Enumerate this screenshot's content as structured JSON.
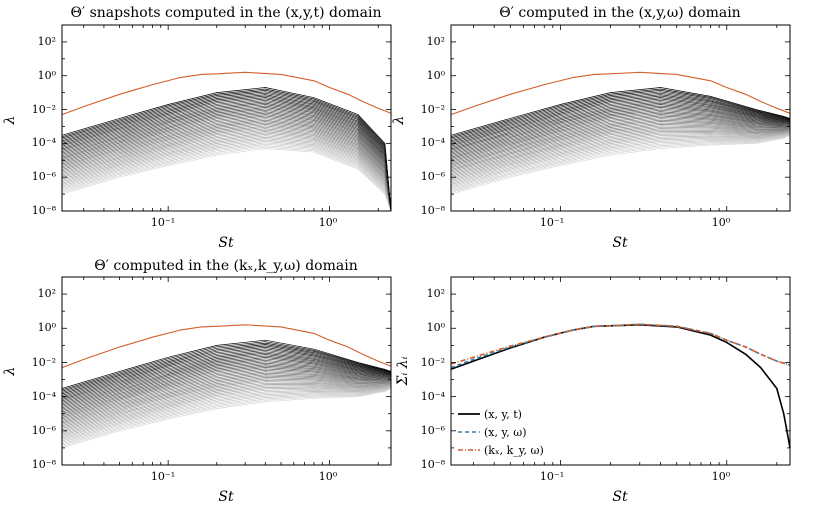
{
  "chart_data": [
    {
      "type": "line",
      "panel": "a",
      "title": "Θ′ snapshots computed in the (x,y,t) domain",
      "xlabel": "St",
      "ylabel": "λ",
      "xscale": "log",
      "yscale": "log",
      "xlim": [
        0.022,
        2.4
      ],
      "ylim": [
        1e-08,
        1000.0
      ],
      "xticks": [
        "10⁻¹",
        "10⁰"
      ],
      "yticks": [
        "10⁻⁸",
        "10⁻⁶",
        "10⁻⁴",
        "10⁻²",
        "10⁰",
        "10²"
      ],
      "series": [
        {
          "role": "leading",
          "color": "#d35f2a",
          "x": [
            0.022,
            0.03,
            0.05,
            0.08,
            0.12,
            0.16,
            0.2,
            0.3,
            0.5,
            0.8,
            1.0,
            1.3,
            1.6,
            2.0,
            2.4
          ],
          "y": [
            0.005,
            0.015,
            0.08,
            0.3,
            0.8,
            1.2,
            1.3,
            1.6,
            1.2,
            0.5,
            0.2,
            0.08,
            0.03,
            0.012,
            0.006
          ]
        },
        {
          "role": "lower",
          "color": "#000000",
          "x": [
            0.022,
            0.05,
            0.1,
            0.2,
            0.4,
            0.8,
            1.5,
            2.2,
            2.4
          ],
          "y": [
            0.0003,
            0.003,
            0.02,
            0.1,
            0.2,
            0.05,
            0.005,
            0.0001,
            1e-08
          ]
        },
        {
          "role": "lower",
          "color": "#d9d9d9",
          "x": [
            0.022,
            0.05,
            0.1,
            0.2,
            0.4,
            0.8,
            1.5,
            2.2,
            2.4
          ],
          "y": [
            1e-07,
            1e-06,
            5e-06,
            2e-05,
            5e-05,
            3e-05,
            3e-06,
            1e-07,
            1e-08
          ]
        }
      ]
    },
    {
      "type": "line",
      "panel": "b",
      "title": "Θ′ computed in the (x,y,ω) domain",
      "xlabel": "St",
      "ylabel": "λ",
      "xscale": "log",
      "yscale": "log",
      "xlim": [
        0.022,
        2.4
      ],
      "ylim": [
        1e-08,
        1000.0
      ],
      "xticks": [
        "10⁻¹",
        "10⁰"
      ],
      "yticks": [
        "10⁻⁸",
        "10⁻⁶",
        "10⁻⁴",
        "10⁻²",
        "10⁰",
        "10²"
      ],
      "series": [
        {
          "role": "leading",
          "color": "#d35f2a",
          "x": [
            0.022,
            0.03,
            0.05,
            0.08,
            0.12,
            0.16,
            0.2,
            0.3,
            0.5,
            0.8,
            1.0,
            1.3,
            1.6,
            2.0,
            2.4
          ],
          "y": [
            0.005,
            0.015,
            0.08,
            0.3,
            0.8,
            1.2,
            1.3,
            1.6,
            1.2,
            0.5,
            0.2,
            0.08,
            0.03,
            0.012,
            0.006
          ]
        },
        {
          "role": "lower",
          "color": "#000000",
          "x": [
            0.022,
            0.05,
            0.1,
            0.2,
            0.4,
            0.8,
            1.5,
            2.2,
            2.4
          ],
          "y": [
            0.0003,
            0.003,
            0.02,
            0.1,
            0.2,
            0.06,
            0.01,
            0.004,
            0.003
          ]
        },
        {
          "role": "lower",
          "color": "#d9d9d9",
          "x": [
            0.022,
            0.05,
            0.1,
            0.2,
            0.4,
            0.8,
            1.5,
            2.2,
            2.4
          ],
          "y": [
            1e-07,
            1e-06,
            5e-06,
            2e-05,
            5e-05,
            8e-05,
            0.0001,
            0.0002,
            0.0003
          ]
        }
      ]
    },
    {
      "type": "line",
      "panel": "c",
      "title": "Θ′ computed in the (kₓ,k_y,ω) domain",
      "xlabel": "St",
      "ylabel": "λ",
      "xscale": "log",
      "yscale": "log",
      "xlim": [
        0.022,
        2.4
      ],
      "ylim": [
        1e-08,
        1000.0
      ],
      "xticks": [
        "10⁻¹",
        "10⁰"
      ],
      "yticks": [
        "10⁻⁸",
        "10⁻⁶",
        "10⁻⁴",
        "10⁻²",
        "10⁰",
        "10²"
      ],
      "series": [
        {
          "role": "leading",
          "color": "#d35f2a",
          "x": [
            0.022,
            0.03,
            0.05,
            0.08,
            0.12,
            0.16,
            0.2,
            0.3,
            0.5,
            0.8,
            1.0,
            1.3,
            1.6,
            2.0,
            2.4
          ],
          "y": [
            0.005,
            0.015,
            0.08,
            0.3,
            0.8,
            1.2,
            1.3,
            1.6,
            1.2,
            0.5,
            0.2,
            0.08,
            0.03,
            0.012,
            0.006
          ]
        },
        {
          "role": "lower",
          "color": "#000000",
          "x": [
            0.022,
            0.05,
            0.1,
            0.2,
            0.4,
            0.8,
            1.5,
            2.2,
            2.4
          ],
          "y": [
            0.0003,
            0.003,
            0.02,
            0.1,
            0.2,
            0.06,
            0.01,
            0.004,
            0.003
          ]
        },
        {
          "role": "lower",
          "color": "#d9d9d9",
          "x": [
            0.022,
            0.05,
            0.1,
            0.2,
            0.4,
            0.8,
            1.5,
            2.2,
            2.4
          ],
          "y": [
            1e-07,
            1e-06,
            5e-06,
            2e-05,
            5e-05,
            8e-05,
            0.0001,
            0.0002,
            0.0003
          ]
        }
      ]
    },
    {
      "type": "line",
      "panel": "d",
      "title": "",
      "xlabel": "St",
      "ylabel": "Σᵢ λᵢ",
      "xscale": "log",
      "yscale": "log",
      "xlim": [
        0.022,
        2.4
      ],
      "ylim": [
        1e-08,
        1000.0
      ],
      "xticks": [
        "10⁻¹",
        "10⁰"
      ],
      "yticks": [
        "10⁻⁸",
        "10⁻⁶",
        "10⁻⁴",
        "10⁻²",
        "10⁰",
        "10²"
      ],
      "legend_position": "bottom-left",
      "series": [
        {
          "name": "(x, y, t)",
          "color": "#000000",
          "dash": "solid",
          "x": [
            0.022,
            0.03,
            0.05,
            0.08,
            0.12,
            0.16,
            0.2,
            0.3,
            0.5,
            0.8,
            1.0,
            1.3,
            1.6,
            2.0,
            2.2,
            2.3,
            2.4
          ],
          "y": [
            0.004,
            0.012,
            0.07,
            0.3,
            0.8,
            1.3,
            1.4,
            1.6,
            1.2,
            0.4,
            0.15,
            0.03,
            0.005,
            0.0003,
            1e-05,
            1e-06,
            1e-07
          ]
        },
        {
          "name": "(x, y, ω)",
          "color": "#2f7fb3",
          "dash": "dashed",
          "x": [
            0.022,
            0.03,
            0.05,
            0.08,
            0.12,
            0.16,
            0.2,
            0.3,
            0.5,
            0.8,
            1.0,
            1.3,
            1.6,
            2.0,
            2.4
          ],
          "y": [
            0.005,
            0.015,
            0.08,
            0.3,
            0.8,
            1.3,
            1.4,
            1.7,
            1.3,
            0.5,
            0.2,
            0.08,
            0.03,
            0.012,
            0.007
          ]
        },
        {
          "name": "(kₓ, k_y, ω)",
          "color": "#d35f2a",
          "dash": "dashdot",
          "x": [
            0.022,
            0.03,
            0.05,
            0.08,
            0.12,
            0.16,
            0.2,
            0.3,
            0.5,
            0.8,
            1.0,
            1.3,
            1.6,
            2.0,
            2.4
          ],
          "y": [
            0.008,
            0.02,
            0.09,
            0.3,
            0.8,
            1.3,
            1.4,
            1.7,
            1.3,
            0.5,
            0.2,
            0.08,
            0.03,
            0.012,
            0.007
          ]
        }
      ]
    }
  ]
}
